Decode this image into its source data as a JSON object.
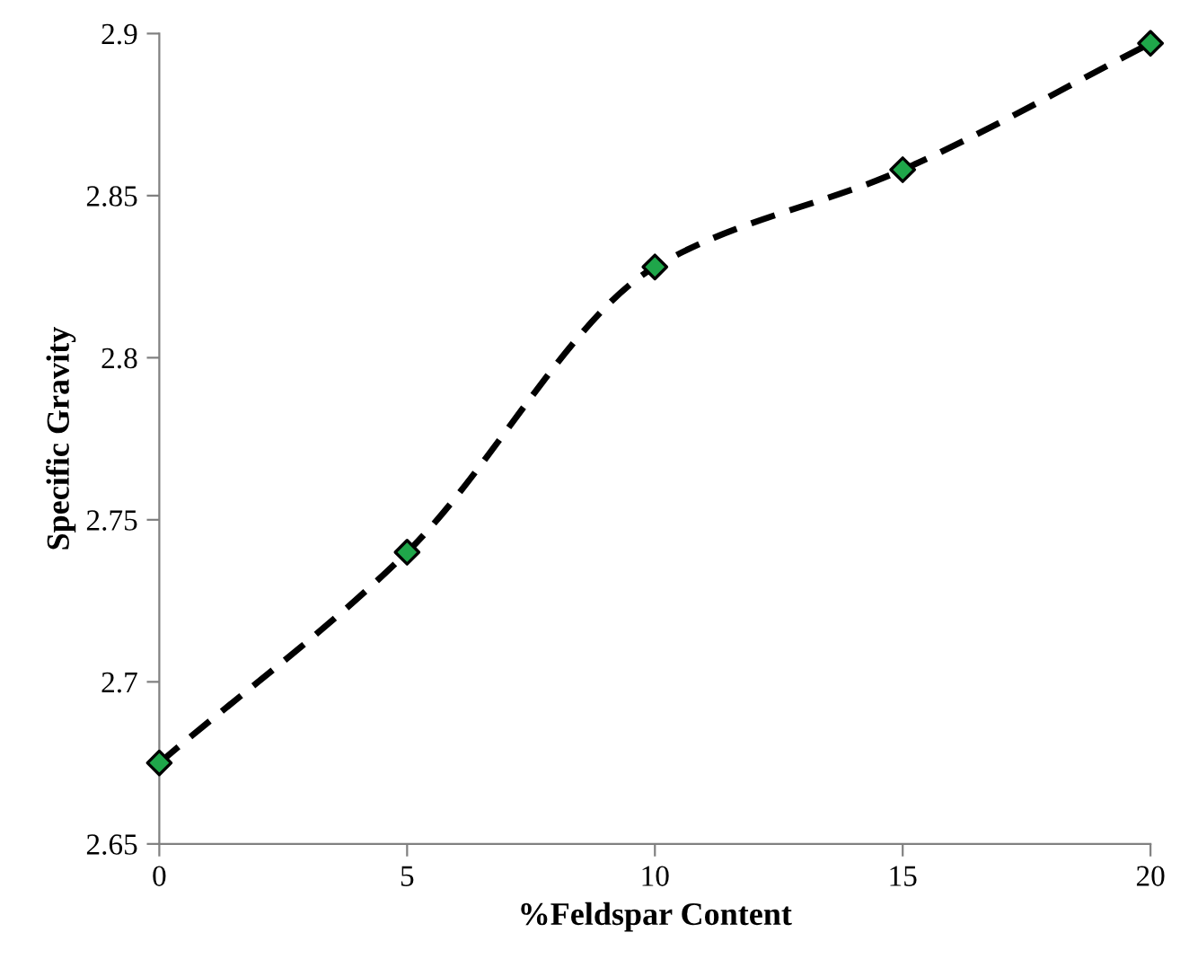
{
  "chart_data": {
    "type": "line",
    "xlabel": "%Feldspar Content",
    "ylabel": "Specific Gravity",
    "x": [
      0,
      5,
      10,
      15,
      20
    ],
    "series": [
      {
        "color": "#000000",
        "colors": [
          "#1fa64a",
          "#1fa64a",
          "#1fa64a",
          "#1fa64a",
          "#1fa64a"
        ],
        "values": [
          2.675,
          2.74,
          2.828,
          2.858,
          2.897
        ]
      }
    ],
    "xlim": [
      0,
      20
    ],
    "xticks": [
      0,
      5,
      10,
      15,
      20
    ],
    "ylim": [
      2.65,
      2.9
    ],
    "yticks": [
      2.65,
      2.7,
      2.75,
      2.8,
      2.85,
      2.9
    ],
    "marker": "diamond",
    "line_style": "dashed",
    "grid": false,
    "legend": false
  }
}
